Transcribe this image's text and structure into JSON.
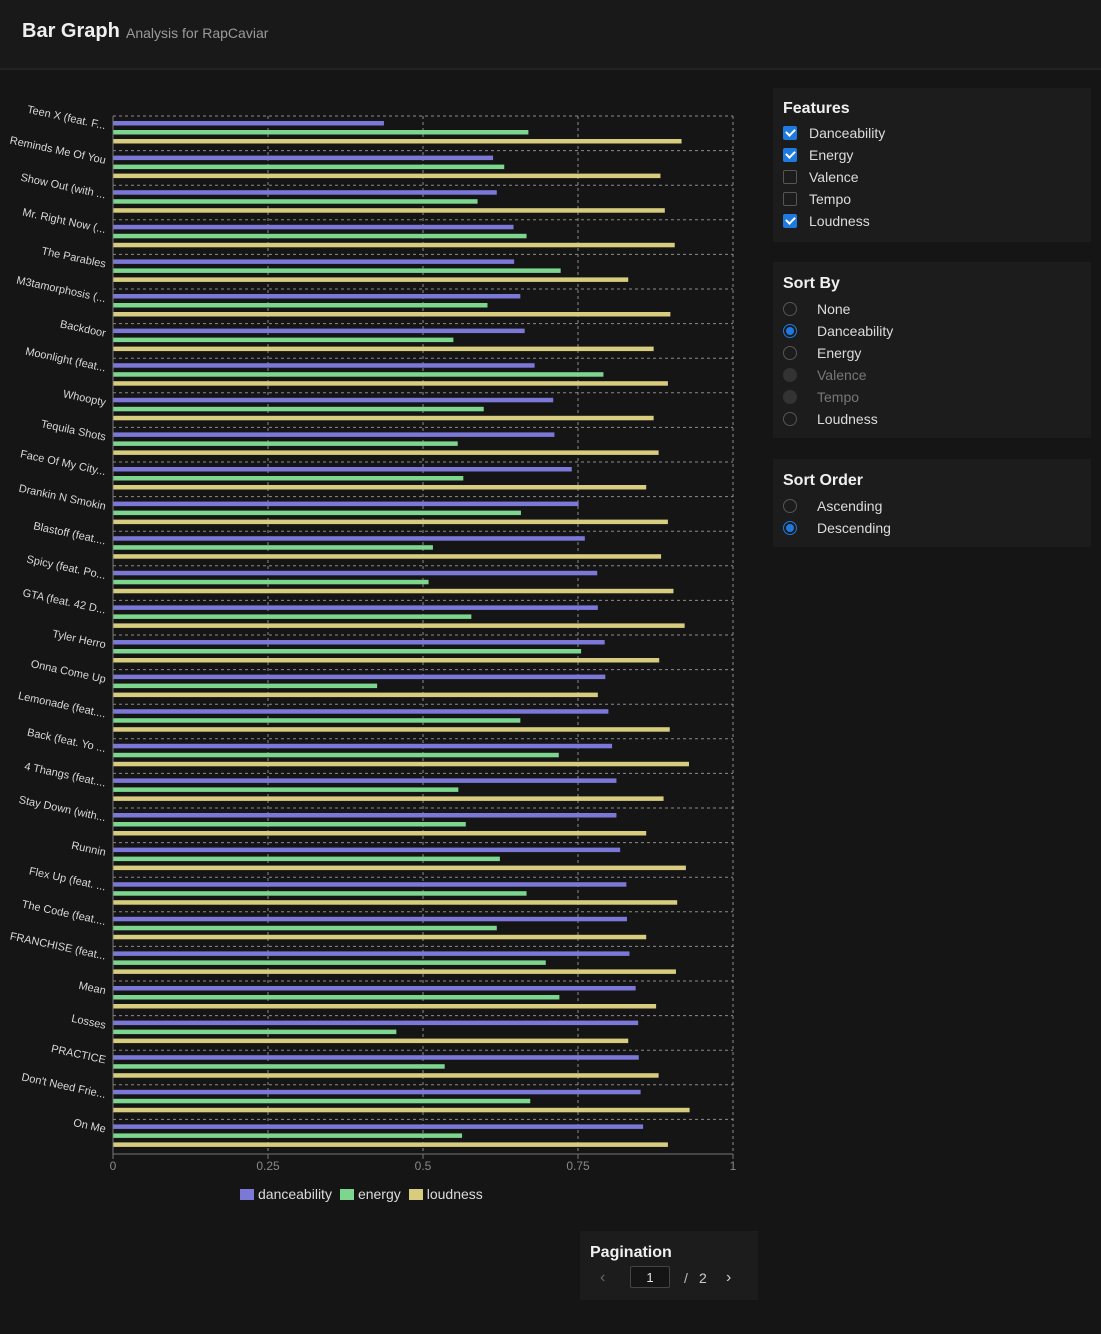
{
  "header": {
    "title": "Bar Graph",
    "subtitle": "Analysis for RapCaviar"
  },
  "features": {
    "title": "Features",
    "items": [
      {
        "label": "Danceability",
        "checked": true
      },
      {
        "label": "Energy",
        "checked": true
      },
      {
        "label": "Valence",
        "checked": false
      },
      {
        "label": "Tempo",
        "checked": false
      },
      {
        "label": "Loudness",
        "checked": true
      }
    ]
  },
  "sort_by": {
    "title": "Sort By",
    "options": [
      {
        "label": "None",
        "selected": false,
        "disabled": false
      },
      {
        "label": "Danceability",
        "selected": true,
        "disabled": false
      },
      {
        "label": "Energy",
        "selected": false,
        "disabled": false
      },
      {
        "label": "Valence",
        "selected": false,
        "disabled": true
      },
      {
        "label": "Tempo",
        "selected": false,
        "disabled": true
      },
      {
        "label": "Loudness",
        "selected": false,
        "disabled": false
      }
    ]
  },
  "sort_order": {
    "title": "Sort Order",
    "options": [
      {
        "label": "Ascending",
        "selected": false
      },
      {
        "label": "Descending",
        "selected": true
      }
    ]
  },
  "pagination": {
    "title": "Pagination",
    "current": "1",
    "separator": "/",
    "total": "2"
  },
  "colors": {
    "danceability": "#7b78d8",
    "energy": "#7dd68e",
    "loudness": "#d8cd7e",
    "accent": "#1f7ae0"
  },
  "icons": {
    "prev": "chevron-left-icon",
    "next": "chevron-right-icon",
    "check": "check-icon"
  },
  "chart_data": {
    "type": "bar",
    "orientation": "horizontal",
    "xlim": [
      0,
      1
    ],
    "xticks": [
      "0",
      "0.25",
      "0.5",
      "0.75",
      "1"
    ],
    "grid": true,
    "legend_position": "bottom",
    "categories": [
      "Teen X (feat. F...",
      "Reminds Me Of You",
      "Show Out (with ...",
      "Mr. Right Now (...",
      "The Parables",
      "M3tamorphosis (...",
      "Backdoor",
      "Moonlight (feat...",
      "Whoopty",
      "Tequila Shots",
      "Face Of My City...",
      "Drankin N Smokin",
      "Blastoff (feat....",
      "Spicy (feat. Po...",
      "GTA (feat. 42 D...",
      "Tyler Herro",
      "Onna Come Up",
      "Lemonade (feat....",
      "Back (feat. Yo ...",
      "4 Thangs (feat....",
      "Stay Down (with...",
      "Runnin",
      "Flex Up (feat. ...",
      "The Code (feat....",
      "FRANCHISE (feat...",
      "Mean",
      "Losses",
      "PRACTICE",
      "Don't Need Frie...",
      "On Me"
    ],
    "series": [
      {
        "name": "danceability",
        "values": [
          0.437,
          0.613,
          0.619,
          0.646,
          0.647,
          0.657,
          0.664,
          0.68,
          0.71,
          0.712,
          0.74,
          0.751,
          0.761,
          0.781,
          0.782,
          0.793,
          0.794,
          0.799,
          0.805,
          0.812,
          0.812,
          0.818,
          0.828,
          0.829,
          0.833,
          0.843,
          0.847,
          0.848,
          0.851,
          0.855
        ]
      },
      {
        "name": "energy",
        "values": [
          0.67,
          0.631,
          0.588,
          0.667,
          0.722,
          0.604,
          0.549,
          0.791,
          0.598,
          0.556,
          0.565,
          0.658,
          0.516,
          0.509,
          0.578,
          0.755,
          0.426,
          0.657,
          0.719,
          0.557,
          0.569,
          0.624,
          0.667,
          0.619,
          0.698,
          0.72,
          0.457,
          0.535,
          0.673,
          0.563
        ]
      },
      {
        "name": "loudness",
        "values": [
          0.917,
          0.883,
          0.89,
          0.906,
          0.831,
          0.899,
          0.872,
          0.895,
          0.872,
          0.88,
          0.86,
          0.895,
          0.884,
          0.904,
          0.922,
          0.881,
          0.782,
          0.898,
          0.929,
          0.888,
          0.86,
          0.924,
          0.91,
          0.86,
          0.908,
          0.876,
          0.831,
          0.88,
          0.93,
          0.895
        ]
      }
    ]
  }
}
